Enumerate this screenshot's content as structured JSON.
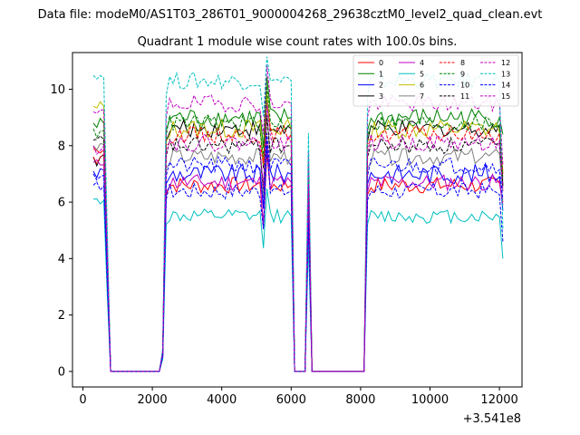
{
  "header": {
    "data_file": "Data file: modeM0/AS1T03_286T01_9000004268_29638cztM0_level2_quad_clean.evt"
  },
  "chart_data": {
    "type": "line",
    "title": "Quadrant 1 module wise count rates with 100.0s bins.",
    "xlabel": "",
    "ylabel": "",
    "x_offset_label": "+3.541e8",
    "xlim": [
      -300,
      12650
    ],
    "ylim": [
      -0.55,
      11.3
    ],
    "xticks": [
      0,
      2000,
      4000,
      6000,
      8000,
      10000,
      12000
    ],
    "xtick_labels": [
      "0",
      "2000",
      "4000",
      "6000",
      "8000",
      "10000",
      "12000"
    ],
    "yticks": [
      0,
      2,
      4,
      6,
      8,
      10
    ],
    "ytick_labels": [
      "0",
      "2",
      "4",
      "6",
      "8",
      "10"
    ],
    "legend_location": "top-right",
    "legend_columns": 4,
    "bin_width": 100,
    "gaps": [
      [
        800,
        2200
      ],
      [
        6100,
        6400
      ],
      [
        6700,
        8100
      ]
    ],
    "drop_segments": [
      {
        "x": [
          600,
          700,
          800,
          2200,
          2300,
          2400
        ],
        "frac": [
          1.0,
          0.5,
          0.0,
          0.0,
          0.08,
          0.95
        ]
      },
      {
        "x": [
          6000,
          6100,
          6400,
          6500,
          6600,
          6700
        ],
        "frac": [
          1.0,
          0.0,
          0.0,
          0.82,
          0.0,
          0.0
        ]
      },
      {
        "x": [
          8100,
          8200
        ],
        "frac": [
          0.0,
          0.95
        ]
      }
    ],
    "series": [
      {
        "name": "0",
        "color": "#ff0000",
        "dash": "solid",
        "start": 7.9,
        "level": 6.6,
        "amp": 0.3,
        "end": 6.0
      },
      {
        "name": "1",
        "color": "#008000",
        "dash": "solid",
        "start": 8.8,
        "level": 9.0,
        "amp": 0.35,
        "end": 8.4
      },
      {
        "name": "2",
        "color": "#0000ff",
        "dash": "solid",
        "start": 7.1,
        "level": 7.0,
        "amp": 0.35,
        "end": 5.7
      },
      {
        "name": "3",
        "color": "#000000",
        "dash": "solid",
        "start": 7.6,
        "level": 8.6,
        "amp": 0.3,
        "end": 6.6
      },
      {
        "name": "4",
        "color": "#bf00bf",
        "dash": "solid",
        "start": 7.4,
        "level": 6.7,
        "amp": 0.3,
        "end": 5.9
      },
      {
        "name": "5",
        "color": "#00bfbf",
        "dash": "solid",
        "start": 6.1,
        "level": 5.5,
        "amp": 0.25,
        "end": 4.0
      },
      {
        "name": "6",
        "color": "#bfbf00",
        "dash": "solid",
        "start": 9.4,
        "level": 8.6,
        "amp": 0.35,
        "end": 7.1
      },
      {
        "name": "7",
        "color": "#808080",
        "dash": "solid",
        "start": 8.0,
        "level": 7.6,
        "amp": 0.3,
        "end": 6.4
      },
      {
        "name": "8",
        "color": "#ff0000",
        "dash": "dashed",
        "start": 7.6,
        "level": 8.4,
        "amp": 0.3,
        "end": 7.0
      },
      {
        "name": "9",
        "color": "#008000",
        "dash": "dashed",
        "start": 8.6,
        "level": 8.8,
        "amp": 0.3,
        "end": 6.8
      },
      {
        "name": "10",
        "color": "#0000ff",
        "dash": "dashed",
        "start": 6.6,
        "level": 6.4,
        "amp": 0.3,
        "end": 4.6
      },
      {
        "name": "11",
        "color": "#000000",
        "dash": "dashed",
        "start": 8.2,
        "level": 8.0,
        "amp": 0.3,
        "end": 6.5
      },
      {
        "name": "12",
        "color": "#bf00bf",
        "dash": "dashed",
        "start": 9.2,
        "level": 9.5,
        "amp": 0.3,
        "end": 7.3
      },
      {
        "name": "13",
        "color": "#00bfbf",
        "dash": "dashed",
        "start": 10.5,
        "level": 10.3,
        "amp": 0.3,
        "end": 5.0
      },
      {
        "name": "14",
        "color": "#0000ff",
        "dash": "dashed",
        "start": 7.0,
        "level": 7.3,
        "amp": 0.3,
        "end": 6.1
      },
      {
        "name": "15",
        "color": "#bf00bf",
        "dash": "dashed",
        "start": 8.0,
        "level": 8.1,
        "amp": 0.3,
        "end": 6.4
      }
    ]
  }
}
